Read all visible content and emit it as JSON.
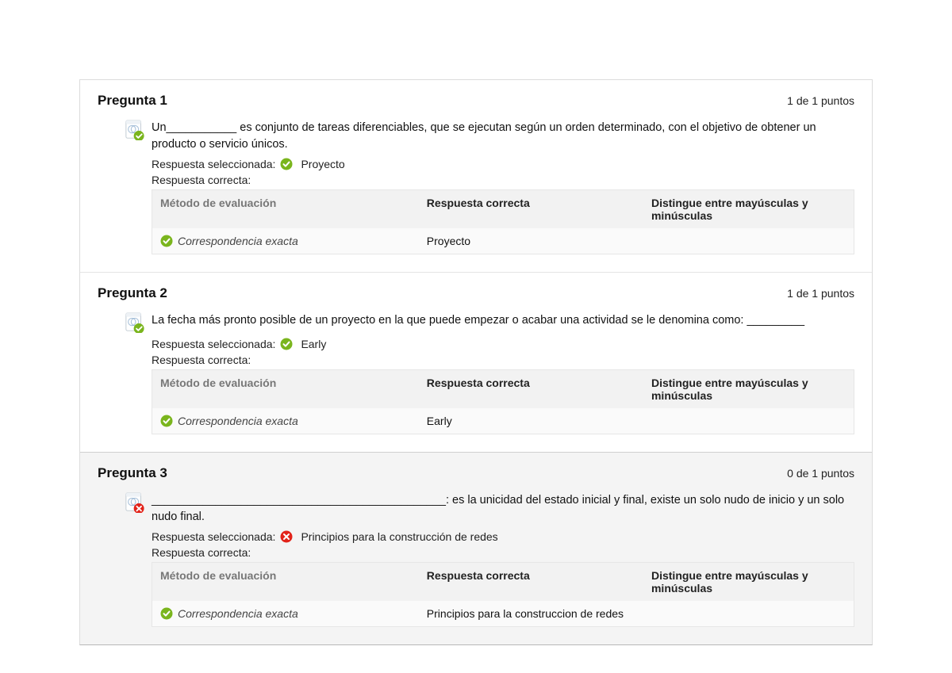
{
  "labels": {
    "selected_label": "Respuesta seleccionada:",
    "correct_label": "Respuesta correcta:",
    "method_header": "Método de evaluación",
    "answer_header": "Respuesta correcta",
    "case_header": "Distingue entre mayúsculas y minúsculas",
    "exact_match": "Correspondencia exacta"
  },
  "colors": {
    "correct": "#7ab51d",
    "incorrect_bg": "#e2231a",
    "icon_stroke": "#bfc9d1",
    "icon_accent": "#88aacc"
  },
  "questions": [
    {
      "title": "Pregunta 1",
      "points": "1 de 1 puntos",
      "correct": true,
      "text": "Un___________ es conjunto de tareas diferenciables, que se ejecutan según un orden determinado, con el objetivo de obtener un producto o servicio únicos.",
      "selected_answer": "Proyecto",
      "correct_answer": "Proyecto",
      "case_sensitive": ""
    },
    {
      "title": "Pregunta 2",
      "points": "1 de 1 puntos",
      "correct": true,
      "text": "La fecha más pronto posible de un proyecto en la que puede empezar o acabar una actividad se le denomina como: _________",
      "selected_answer": "Early",
      "correct_answer": "Early",
      "case_sensitive": ""
    },
    {
      "title": "Pregunta 3",
      "points": "0 de 1 puntos",
      "correct": false,
      "text": "______________________________________________: es la unicidad del estado inicial y final, existe un solo nudo de inicio y un solo nudo final.",
      "selected_answer": "Principios para la construcción de redes",
      "correct_answer": "Principios para la construccion de redes",
      "case_sensitive": ""
    }
  ]
}
